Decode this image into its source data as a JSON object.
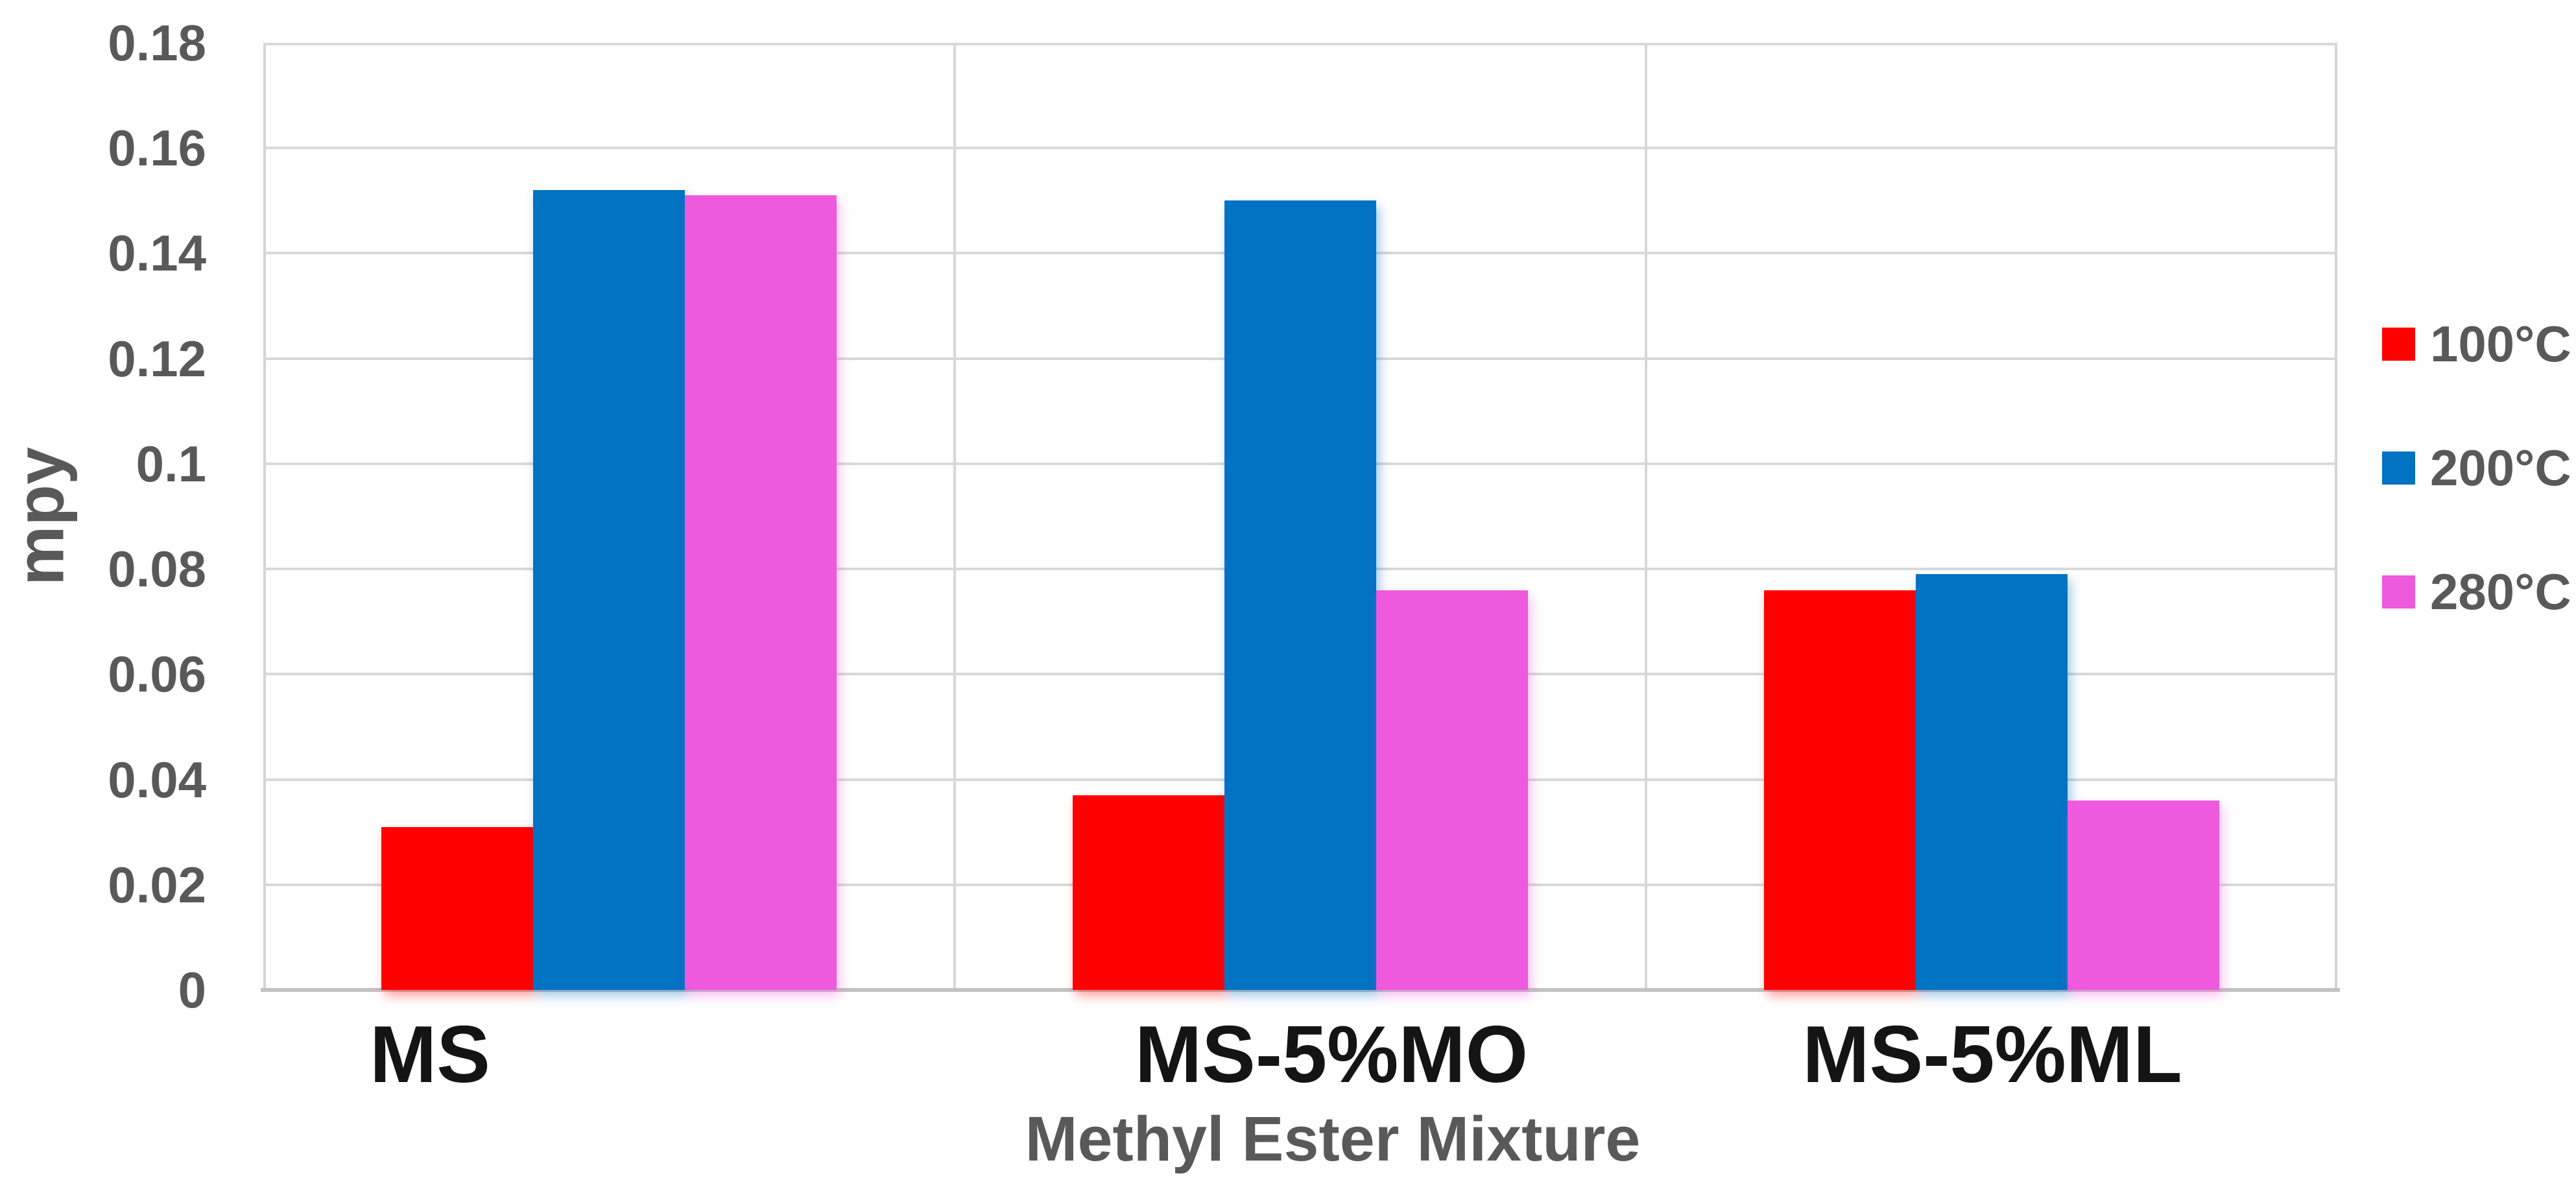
{
  "chart_data": {
    "type": "bar",
    "title": "",
    "xlabel": "Methyl Ester Mixture",
    "ylabel": "mpy",
    "categories": [
      "MS",
      "MS-5%MO",
      "MS-5%ML"
    ],
    "series": [
      {
        "name": "100°C",
        "color": "#FF0000",
        "values": [
          0.031,
          0.037,
          0.076
        ]
      },
      {
        "name": "200°C",
        "color": "#0272C3",
        "values": [
          0.152,
          0.15,
          0.079
        ]
      },
      {
        "name": "280°C",
        "color": "#EF59DD",
        "values": [
          0.151,
          0.076,
          0.036
        ]
      }
    ],
    "ylim": [
      0,
      0.18
    ],
    "ytick_step": 0.02,
    "ytick_labels": [
      "0.18",
      "0.16",
      "0.14",
      "0.12",
      "0.1",
      "0.08",
      "0.06",
      "0.04",
      "0.02",
      "0"
    ],
    "grid": true,
    "legend_position": "right",
    "colors": {
      "axis_text": "#595959",
      "category_text": "#141414",
      "gridline": "#d9d9d9",
      "baseline": "#c3c3c3",
      "background": "#ffffff"
    }
  }
}
